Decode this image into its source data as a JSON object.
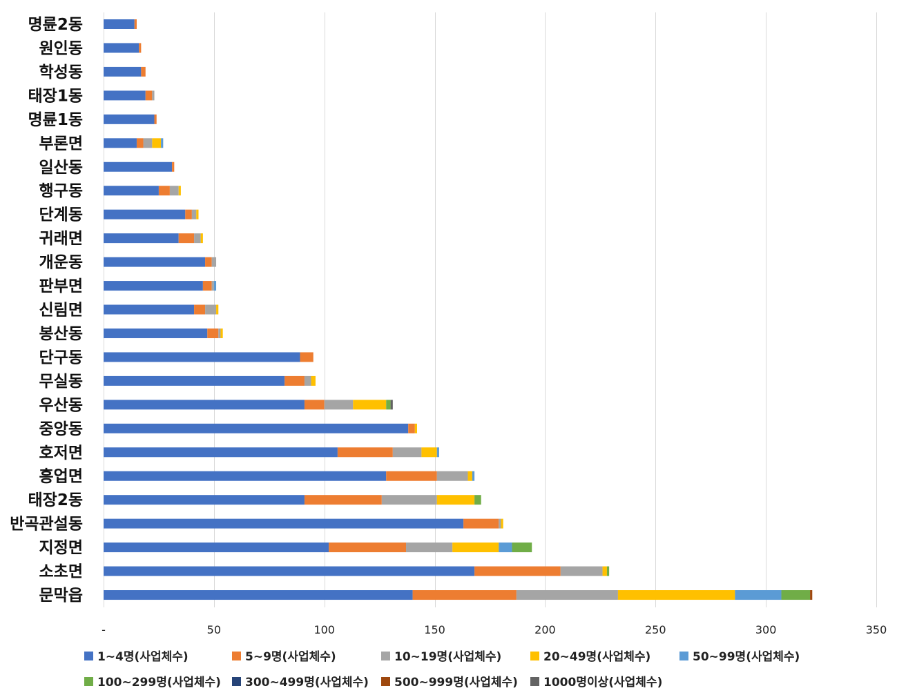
{
  "chart_data": {
    "type": "bar",
    "orientation": "horizontal",
    "stacked": true,
    "title": "",
    "xlabel": "",
    "ylabel": "",
    "xlim": [
      0,
      350
    ],
    "x_ticks": [
      0,
      50,
      100,
      150,
      200,
      250,
      300,
      350
    ],
    "x_tick_labels": [
      "-",
      "50",
      "100",
      "150",
      "200",
      "250",
      "300",
      "350"
    ],
    "grid": true,
    "legend_position": "bottom",
    "categories": [
      "명륜2동",
      "원인동",
      "학성동",
      "태장1동",
      "명륜1동",
      "부론면",
      "일산동",
      "행구동",
      "단계동",
      "귀래면",
      "개운동",
      "판부면",
      "신림면",
      "봉산동",
      "단구동",
      "무실동",
      "우산동",
      "중앙동",
      "호저면",
      "흥업면",
      "태장2동",
      "반곡관설동",
      "지정면",
      "소초면",
      "문막읍"
    ],
    "series": [
      {
        "name": "1~4명(사업체수)",
        "color": "#4472C4",
        "values": [
          14,
          16,
          17,
          19,
          23,
          15,
          31,
          25,
          37,
          34,
          46,
          45,
          41,
          47,
          89,
          82,
          91,
          138,
          106,
          128,
          91,
          163,
          102,
          168,
          140
        ]
      },
      {
        "name": "5~9명(사업체수)",
        "color": "#ED7D31",
        "values": [
          1,
          1,
          2,
          3,
          1,
          3,
          1,
          5,
          3,
          7,
          3,
          4,
          5,
          5,
          6,
          9,
          9,
          3,
          25,
          23,
          35,
          16,
          35,
          39,
          47
        ]
      },
      {
        "name": "10~19명(사업체수)",
        "color": "#A5A5A5",
        "values": [
          0,
          0,
          0,
          1,
          0,
          4,
          0,
          4,
          2,
          3,
          2,
          1,
          5,
          1,
          0,
          3,
          13,
          0,
          13,
          14,
          25,
          1,
          21,
          19,
          46
        ]
      },
      {
        "name": "20~49명(사업체수)",
        "color": "#FFC000",
        "values": [
          0,
          0,
          0,
          0,
          0,
          4,
          0,
          1,
          1,
          1,
          0,
          0,
          1,
          1,
          0,
          2,
          15,
          1,
          7,
          2,
          17,
          1,
          21,
          2,
          53
        ]
      },
      {
        "name": "50~99명(사업체수)",
        "color": "#5B9BD5",
        "values": [
          0,
          0,
          0,
          0,
          0,
          1,
          0,
          0,
          0,
          0,
          0,
          1,
          0,
          0,
          0,
          0,
          0,
          0,
          1,
          1,
          0,
          0,
          6,
          0,
          21
        ]
      },
      {
        "name": "100~299명(사업체수)",
        "color": "#70AD47",
        "values": [
          0,
          0,
          0,
          0,
          0,
          0,
          0,
          0,
          0,
          0,
          0,
          0,
          0,
          0,
          0,
          0,
          2,
          0,
          0,
          0,
          3,
          0,
          9,
          1,
          13
        ]
      },
      {
        "name": "300~499명(사업체수)",
        "color": "#264478",
        "values": [
          0,
          0,
          0,
          0,
          0,
          0,
          0,
          0,
          0,
          0,
          0,
          0,
          0,
          0,
          0,
          0,
          0,
          0,
          0,
          0,
          0,
          0,
          0,
          0,
          0
        ]
      },
      {
        "name": "500~999명(사업체수)",
        "color": "#9E480E",
        "values": [
          0,
          0,
          0,
          0,
          0,
          0,
          0,
          0,
          0,
          0,
          0,
          0,
          0,
          0,
          0,
          0,
          0,
          0,
          0,
          0,
          0,
          0,
          0,
          0,
          1
        ]
      },
      {
        "name": "1000명이상(사업체수)",
        "color": "#636363",
        "values": [
          0,
          0,
          0,
          0,
          0,
          0,
          0,
          0,
          0,
          0,
          0,
          0,
          0,
          0,
          0,
          0,
          1,
          0,
          0,
          0,
          0,
          0,
          0,
          0,
          0
        ]
      }
    ]
  }
}
